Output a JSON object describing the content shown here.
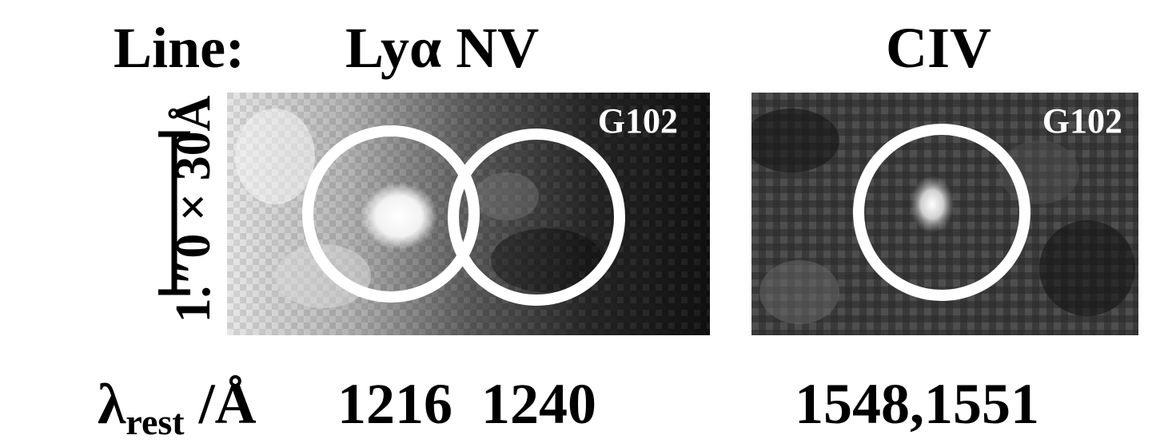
{
  "header": {
    "line_label": "Line:",
    "lya_nv_label": "Lyα NV",
    "civ_label": "CIV"
  },
  "scale_label": "1.″0 × 30Å",
  "footer": {
    "lambda_symbol": "λ",
    "lambda_sub": "rest",
    "lambda_unit": " /Å",
    "lya_nv_wavelengths": "1216  1240",
    "civ_wavelengths": "1548,1551"
  },
  "panels": [
    {
      "grating": "G102",
      "apertures": 2
    },
    {
      "grating": "G102",
      "apertures": 1
    }
  ],
  "colors": {
    "aperture": "#ffffff",
    "scalebar": "#000000"
  }
}
